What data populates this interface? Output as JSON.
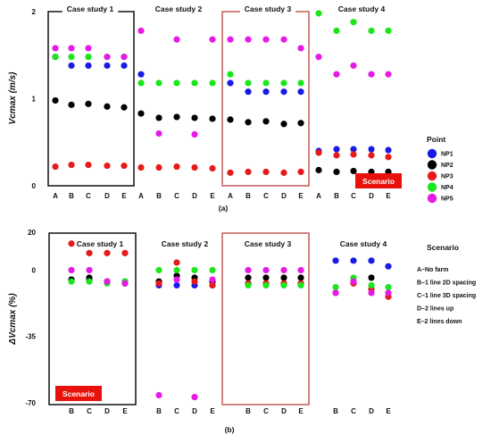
{
  "chart_data": [
    {
      "type": "scatter",
      "panel_label": "(a)",
      "ylabel": "Vcmax (m/s)",
      "yticks": [
        "2",
        "1",
        "0"
      ],
      "ylim": [
        0,
        2
      ],
      "legend_title": "Point",
      "scenario_box_label": "Scenario",
      "groups": [
        {
          "title": "Case study 1",
          "categories": [
            "A",
            "B",
            "C",
            "D",
            "E"
          ]
        },
        {
          "title": "Case study 2",
          "categories": [
            "A",
            "B",
            "C",
            "D",
            "E"
          ]
        },
        {
          "title": "Case study 3",
          "categories": [
            "A",
            "B",
            "C",
            "D",
            "E"
          ]
        },
        {
          "title": "Case study 4",
          "categories": [
            "A",
            "B",
            "C",
            "D",
            "E"
          ]
        }
      ],
      "series": [
        {
          "name": "NP1",
          "color": "#1a1ae6",
          "values": [
            1.48,
            1.38,
            1.38,
            1.38,
            1.38,
            1.28,
            null,
            null,
            null,
            null,
            1.18,
            1.08,
            1.08,
            1.08,
            1.08,
            0.4,
            0.42,
            0.42,
            0.42,
            0.41
          ]
        },
        {
          "name": "NP2",
          "color": "#000000",
          "values": [
            0.98,
            0.93,
            0.94,
            0.91,
            0.9,
            0.83,
            0.78,
            0.79,
            0.78,
            0.77,
            0.76,
            0.73,
            0.74,
            0.71,
            0.72,
            0.18,
            0.16,
            0.17,
            0.16,
            0.16
          ]
        },
        {
          "name": "NP3",
          "color": "#e61a1a",
          "values": [
            0.22,
            0.24,
            0.24,
            0.23,
            0.23,
            0.21,
            0.21,
            0.22,
            0.21,
            0.2,
            0.15,
            0.16,
            0.16,
            0.15,
            0.16,
            0.38,
            0.35,
            0.36,
            0.35,
            0.33
          ]
        },
        {
          "name": "NP4",
          "color": "#1ae61a",
          "values": [
            1.48,
            1.48,
            1.48,
            1.48,
            1.48,
            1.18,
            1.18,
            1.18,
            1.18,
            1.18,
            1.28,
            1.18,
            1.18,
            1.18,
            1.18,
            1.98,
            1.78,
            1.88,
            1.78,
            1.78
          ]
        },
        {
          "name": "NP5",
          "color": "#e61ae6",
          "values": [
            1.58,
            1.58,
            1.58,
            1.48,
            1.48,
            1.78,
            0.6,
            1.68,
            0.59,
            1.68,
            1.68,
            1.68,
            1.68,
            1.68,
            1.58,
            1.48,
            1.28,
            1.38,
            1.28,
            1.28
          ]
        }
      ]
    },
    {
      "type": "scatter",
      "panel_label": "(b)",
      "ylabel": "ΔVcmax (%)",
      "yticks": [
        "20",
        "0",
        "-35",
        "-70"
      ],
      "ylim": [
        -70,
        20
      ],
      "legend_title": "Scenario",
      "legend_items": [
        "A–No farm",
        "B–1 line 2D spacing",
        "C–1 line 3D spacing",
        "D–2 lines up",
        "E–2 lines down"
      ],
      "scenario_box_label": "Scenario",
      "groups": [
        {
          "title": "Case study 1",
          "categories": [
            "B",
            "C",
            "D",
            "E"
          ]
        },
        {
          "title": "Case study 2",
          "categories": [
            "B",
            "C",
            "D",
            "E"
          ]
        },
        {
          "title": "Case study 3",
          "categories": [
            "B",
            "C",
            "D",
            "E"
          ]
        },
        {
          "title": "Case study 4",
          "categories": [
            "B",
            "C",
            "D",
            "E"
          ]
        }
      ],
      "series": [
        {
          "name": "NP1",
          "color": "#1a1ae6",
          "values": [
            -5,
            -5,
            -6,
            -6,
            -8,
            -8,
            -8,
            -8,
            -7,
            -7,
            -7,
            -7,
            5,
            5,
            5,
            2
          ]
        },
        {
          "name": "NP2",
          "color": "#000000",
          "values": [
            -5,
            -4,
            -6,
            -7,
            -6,
            -3,
            -4,
            -6,
            -4,
            -4,
            -4,
            -4,
            null,
            null,
            -4,
            null
          ]
        },
        {
          "name": "NP3",
          "color": "#e61a1a",
          "values": [
            14,
            9,
            9,
            9,
            -7,
            4,
            -6,
            -8,
            -7,
            -7,
            -7,
            -7,
            -12,
            -7,
            -10,
            -14
          ]
        },
        {
          "name": "NP4",
          "color": "#1ae61a",
          "values": [
            -6,
            -6,
            -7,
            -6,
            0,
            0,
            0,
            0,
            -8,
            -8,
            -8,
            -8,
            -9,
            -4,
            -8,
            -9
          ]
        },
        {
          "name": "NP5",
          "color": "#e61ae6",
          "values": [
            0,
            0,
            -6,
            -7,
            -66,
            -5,
            -67,
            -5,
            0,
            0,
            0,
            0,
            -12,
            -6,
            -12,
            -12
          ]
        }
      ]
    }
  ]
}
